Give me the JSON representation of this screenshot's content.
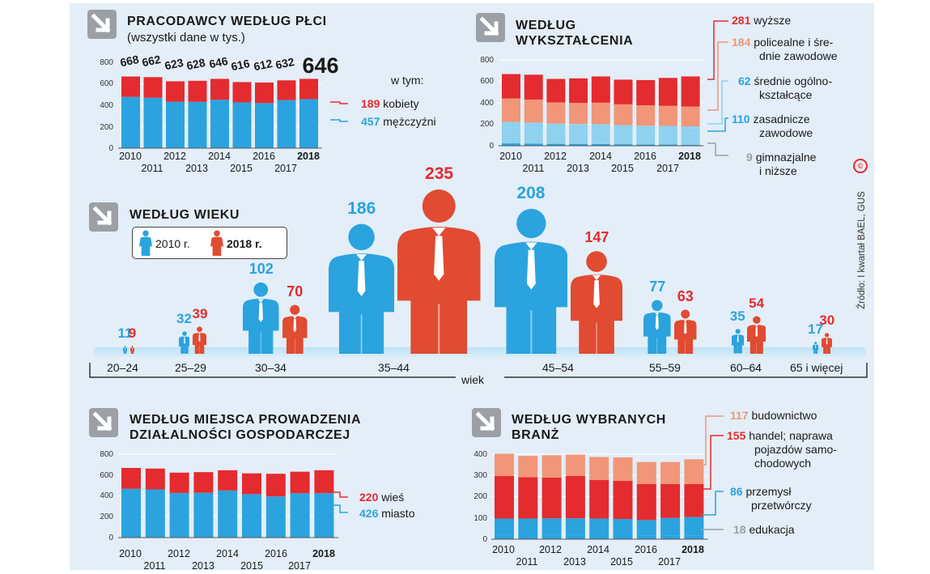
{
  "colors": {
    "red": "#e42b2f",
    "blue": "#2ba3de",
    "salmon": "#f19678",
    "lightblue": "#8ed2f0",
    "gray": "#9aa0a6",
    "background": "#e3eef8"
  },
  "source": "Źródło: I kwartał BAEL, GUS",
  "chart_data": [
    {
      "id": "gender",
      "type": "bar",
      "title": "PRACODAWCY WEDŁUG PŁCI",
      "subtitle": "(wszystki dane w tys.)",
      "years": [
        "2010",
        "2011",
        "2012",
        "2013",
        "2014",
        "2015",
        "2016",
        "2017",
        "2018"
      ],
      "totals": [
        "668",
        "662",
        "623",
        "628",
        "646",
        "616",
        "612",
        "632",
        "646"
      ],
      "series": [
        {
          "name": "mężczyźni",
          "values": [
            478,
            470,
            433,
            432,
            451,
            427,
            420,
            448,
            457
          ]
        },
        {
          "name": "kobiety",
          "values": [
            190,
            192,
            190,
            196,
            195,
            189,
            192,
            184,
            189
          ]
        }
      ],
      "ylim": [
        0,
        800
      ],
      "yticks": [
        "0",
        "200",
        "400",
        "600",
        "800"
      ],
      "legend_header": "w tym:",
      "legend": [
        {
          "value": "189",
          "label": "kobiety"
        },
        {
          "value": "457",
          "label": "mężczyźni"
        }
      ]
    },
    {
      "id": "education",
      "type": "bar",
      "title": "WEDŁUG WYKSZTAŁCENIA",
      "years": [
        "2010",
        "2011",
        "2012",
        "2013",
        "2014",
        "2015",
        "2016",
        "2017",
        "2018"
      ],
      "series": [
        {
          "name": "gimnazjalne i niższe",
          "values": [
            22,
            20,
            18,
            17,
            16,
            14,
            12,
            11,
            9
          ]
        },
        {
          "name": "zasadnicze zawodowe",
          "values": [
            145,
            140,
            130,
            128,
            125,
            118,
            115,
            113,
            110
          ]
        },
        {
          "name": "średnie ogólnokształcące",
          "values": [
            55,
            56,
            58,
            58,
            60,
            60,
            60,
            61,
            62
          ]
        },
        {
          "name": "policealne i średnie zawodowe",
          "values": [
            218,
            214,
            198,
            196,
            200,
            194,
            190,
            187,
            184
          ]
        },
        {
          "name": "wyższe",
          "values": [
            228,
            232,
            219,
            229,
            245,
            230,
            235,
            260,
            281
          ]
        }
      ],
      "ylim": [
        0,
        800
      ],
      "yticks": [
        "0",
        "200",
        "400",
        "600",
        "800"
      ],
      "legend": [
        {
          "value": "281",
          "lines": [
            "wyższe"
          ]
        },
        {
          "value": "184",
          "lines": [
            "policealne i śre-",
            "dnie zawodowe"
          ]
        },
        {
          "value": "62",
          "lines": [
            "średnie ogólno-",
            "kształcące"
          ]
        },
        {
          "value": "110",
          "lines": [
            "zasadnicze",
            "zawodowe"
          ]
        },
        {
          "value": "9",
          "lines": [
            "gimnazjalne",
            "i niższe"
          ]
        }
      ]
    },
    {
      "id": "age",
      "type": "pictogram",
      "title": "WEDŁUG WIEKU",
      "legend": {
        "a": "2010 r.",
        "b": "2018 r."
      },
      "axis_label": "wiek",
      "groups": [
        {
          "label": "20–24",
          "v2010": 11,
          "v2018": 9,
          "l2010": "11",
          "l2018": "9"
        },
        {
          "label": "25–29",
          "v2010": 32,
          "v2018": 39,
          "l2010": "32",
          "l2018": "39"
        },
        {
          "label": "30–34",
          "v2010": 102,
          "v2018": 70,
          "l2010": "102",
          "l2018": "70"
        },
        {
          "label": "35–44",
          "v2010": 186,
          "v2018": 235,
          "l2010": "186",
          "l2018": "235"
        },
        {
          "label": "45–54",
          "v2010": 208,
          "v2018": 147,
          "l2010": "208",
          "l2018": "147"
        },
        {
          "label": "55–59",
          "v2010": 77,
          "v2018": 63,
          "l2010": "77",
          "l2018": "63"
        },
        {
          "label": "60–64",
          "v2010": 35,
          "v2018": 54,
          "l2010": "35",
          "l2018": "54"
        },
        {
          "label": "65 i więcej",
          "v2010": 17,
          "v2018": 30,
          "l2010": "17",
          "l2018": "30"
        }
      ]
    },
    {
      "id": "place",
      "type": "bar",
      "title": "WEDŁUG MIEJSCA PROWADZENIA DZIAŁALNOŚCI GOSPODARCZEJ",
      "title_lines": [
        "WEDŁUG MIEJSCA PROWADZENIA",
        "DZIAŁALNOŚCI GOSPODARCZEJ"
      ],
      "years": [
        "2010",
        "2011",
        "2012",
        "2013",
        "2014",
        "2015",
        "2016",
        "2017",
        "2018"
      ],
      "series": [
        {
          "name": "miasto",
          "values": [
            468,
            462,
            428,
            430,
            452,
            417,
            395,
            425,
            426
          ]
        },
        {
          "name": "wieś",
          "values": [
            200,
            200,
            195,
            198,
            194,
            199,
            217,
            207,
            220
          ]
        }
      ],
      "ylim": [
        0,
        800
      ],
      "yticks": [
        "0",
        "200",
        "400",
        "600",
        "800"
      ],
      "legend": [
        {
          "value": "220",
          "label": "wieś"
        },
        {
          "value": "426",
          "label": "miasto"
        }
      ]
    },
    {
      "id": "branch",
      "type": "bar",
      "title": "WEDŁUG WYBRANYCH BRANŻ",
      "title_lines": [
        "WEDŁUG WYBRANYCH",
        "BRANŻ"
      ],
      "years": [
        "2010",
        "2011",
        "2012",
        "2013",
        "2014",
        "2015",
        "2016",
        "2017",
        "2018"
      ],
      "series": [
        {
          "name": "edukacja",
          "values": [
            22,
            21,
            20,
            20,
            19,
            19,
            18,
            18,
            18
          ]
        },
        {
          "name": "przemysł przetwórczy",
          "values": [
            75,
            76,
            78,
            78,
            78,
            76,
            72,
            82,
            86
          ]
        },
        {
          "name": "handel; naprawa pojazdów samochodowych",
          "values": [
            200,
            195,
            192,
            200,
            182,
            180,
            170,
            160,
            155
          ]
        },
        {
          "name": "budownictwo",
          "values": [
            105,
            100,
            105,
            100,
            108,
            110,
            103,
            103,
            117
          ]
        }
      ],
      "ylim": [
        0,
        400
      ],
      "yticks": [
        "0",
        "100",
        "200",
        "300",
        "400"
      ],
      "legend": [
        {
          "value": "117",
          "lines": [
            "budownictwo"
          ]
        },
        {
          "value": "155",
          "lines": [
            "handel; naprawa",
            "pojazdów samo-",
            "chodowych"
          ]
        },
        {
          "value": "86",
          "lines": [
            "przemysł",
            "przetwórczy"
          ]
        },
        {
          "value": "18",
          "lines": [
            "edukacja"
          ]
        }
      ]
    }
  ]
}
